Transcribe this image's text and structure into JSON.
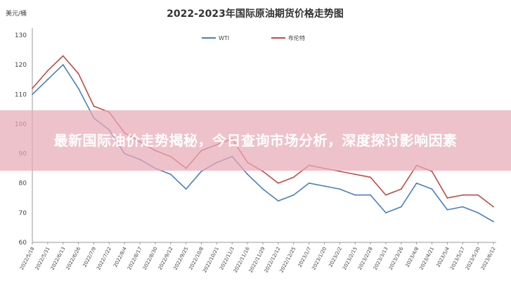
{
  "banner": {
    "headline": "最新国际油价走势揭秘，今日查询市场分析，深度探讨影响因素"
  },
  "chart_data": {
    "type": "line",
    "title": "2022-2023年国际原油期货价格走势图",
    "ylabel": "美元/桶",
    "xlabel": "",
    "ylim": [
      60,
      130
    ],
    "yticks": [
      60,
      70,
      80,
      90,
      100,
      110,
      120,
      130
    ],
    "grid": false,
    "legend_position": "top-center",
    "x": [
      "2022/5/18",
      "2022/5/31",
      "2022/6/13",
      "2022/6/26",
      "2022/7/9",
      "2022/7/22",
      "2022/8/4",
      "2022/8/17",
      "2022/8/30",
      "2022/9/12",
      "2022/9/25",
      "2022/10/8",
      "2022/10/21",
      "2022/11/3",
      "2022/11/16",
      "2022/11/29",
      "2022/12/12",
      "2022/12/25",
      "2023/1/7",
      "2023/1/20",
      "2023/2/2",
      "2023/2/15",
      "2023/2/28",
      "2023/3/13",
      "2023/3/26",
      "2023/4/8",
      "2023/4/21",
      "2023/5/4",
      "2023/5/17",
      "2023/5/30",
      "2023/6/12"
    ],
    "series": [
      {
        "name": "WTI",
        "color": "#4a7ebb",
        "values": [
          110,
          115,
          120,
          112,
          102,
          98,
          90,
          88,
          85,
          83,
          78,
          84,
          87,
          89,
          83,
          78,
          74,
          76,
          80,
          79,
          78,
          76,
          76,
          70,
          72,
          80,
          78,
          71,
          72,
          70,
          67
        ]
      },
      {
        "name": "布伦特",
        "color": "#be4b48",
        "values": [
          112,
          118,
          123,
          117,
          106,
          104,
          97,
          94,
          91,
          89,
          85,
          91,
          93,
          95,
          87,
          84,
          80,
          82,
          86,
          85,
          84,
          83,
          82,
          76,
          78,
          86,
          84,
          75,
          76,
          76,
          72
        ]
      }
    ]
  }
}
